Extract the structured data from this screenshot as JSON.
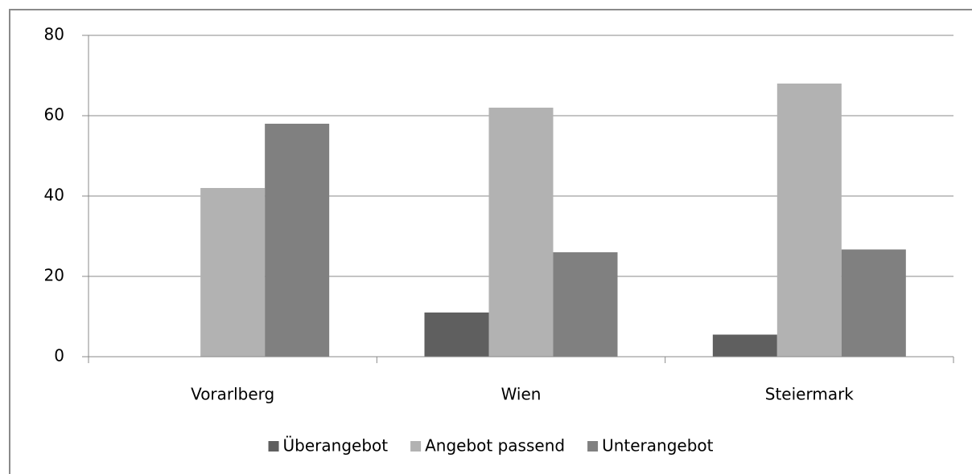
{
  "chart_data": {
    "type": "bar",
    "categories": [
      "Vorarlberg",
      "Wien",
      "Steiermark"
    ],
    "series": [
      {
        "name": "Überangebot",
        "color": "#5f5f5f",
        "values": [
          0,
          11,
          5.5
        ]
      },
      {
        "name": "Angebot passend",
        "color": "#b2b2b2",
        "values": [
          42,
          62,
          68
        ]
      },
      {
        "name": "Unterangebot",
        "color": "#808080",
        "values": [
          58,
          26,
          26.7
        ]
      }
    ],
    "ylim": [
      0,
      80
    ],
    "yticks": [
      0,
      20,
      40,
      60,
      80
    ],
    "grid": true,
    "legend": "bottom"
  }
}
